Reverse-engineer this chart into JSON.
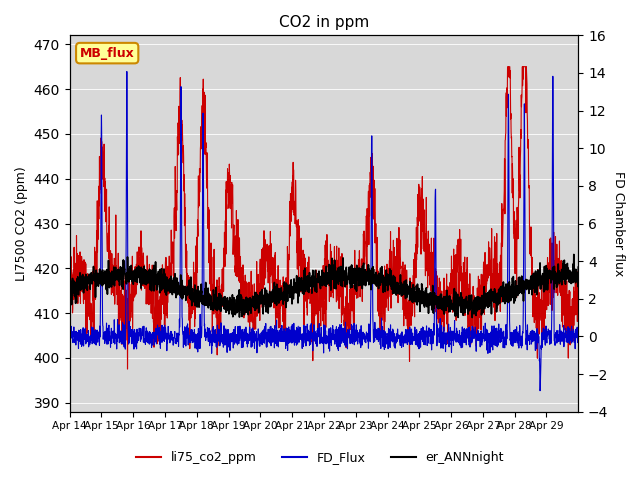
{
  "title": "CO2 in ppm",
  "ylabel_left": "LI7500 CO2 (ppm)",
  "ylabel_right": "FD Chamber flux",
  "ylim_left": [
    388,
    472
  ],
  "ylim_right": [
    -4,
    16
  ],
  "yticks_left": [
    390,
    400,
    410,
    420,
    430,
    440,
    450,
    460,
    470
  ],
  "yticks_right": [
    -4,
    -2,
    0,
    2,
    4,
    6,
    8,
    10,
    12,
    14,
    16
  ],
  "plot_bg_color": "#d8d8d8",
  "annotation_text": "MB_flux",
  "annotation_bg": "#ffff99",
  "annotation_border": "#cc8800",
  "line_co2_color": "#cc0000",
  "line_flux_color": "#0000cc",
  "line_ann_color": "#000000",
  "legend_labels": [
    "li75_co2_ppm",
    "FD_Flux",
    "er_ANNnight"
  ],
  "x_tick_labels": [
    "Apr 14",
    "Apr 15",
    "Apr 16",
    "Apr 17",
    "Apr 18",
    "Apr 19",
    "Apr 20",
    "Apr 21",
    "Apr 22",
    "Apr 23",
    "Apr 24",
    "Apr 25",
    "Apr 26",
    "Apr 27",
    "Apr 28",
    "Apr 29"
  ],
  "n_days": 16,
  "seed": 42
}
